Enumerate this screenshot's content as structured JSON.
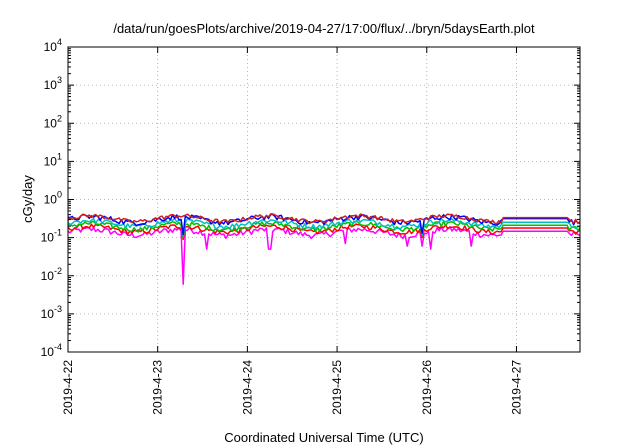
{
  "chart_data": {
    "type": "line",
    "title": "/data/run/goesPlots/archive/2019-04-27/17:00/flux/../bryn/5daysEarth.plot",
    "xlabel": "Coordinated Universal Time (UTC)",
    "ylabel": "cGy/day",
    "yscale": "log",
    "ylim": [
      0.0001,
      10000
    ],
    "y_ticks": [
      {
        "value": 0.0001,
        "base": "10",
        "exp": "-4"
      },
      {
        "value": 0.001,
        "base": "10",
        "exp": "-3"
      },
      {
        "value": 0.01,
        "base": "10",
        "exp": "-2"
      },
      {
        "value": 0.1,
        "base": "10",
        "exp": "-1"
      },
      {
        "value": 1,
        "base": "10",
        "exp": "0"
      },
      {
        "value": 10,
        "base": "10",
        "exp": "1"
      },
      {
        "value": 100,
        "base": "10",
        "exp": "2"
      },
      {
        "value": 1000,
        "base": "10",
        "exp": "3"
      },
      {
        "value": 10000,
        "base": "10",
        "exp": "4"
      }
    ],
    "x_ticks": [
      "2019-4-22",
      "2019-4-23",
      "2019-4-24",
      "2019-4-25",
      "2019-4-26",
      "2019-4-27"
    ],
    "xlim": [
      "2019-04-22T00:00",
      "2019-04-27T17:00"
    ],
    "grid": true,
    "legend": "none",
    "series": [
      {
        "color": "#ff00ff",
        "base": 0.14,
        "spread": 0.05,
        "dips": [
          [
            1.28,
            0.006
          ],
          [
            1.55,
            0.05
          ],
          [
            2.25,
            0.05
          ],
          [
            3.1,
            0.07
          ],
          [
            3.78,
            0.06
          ],
          [
            3.95,
            0.06
          ],
          [
            4.05,
            0.05
          ],
          [
            4.5,
            0.06
          ]
        ]
      },
      {
        "color": "#ff0000",
        "base": 0.17,
        "spread": 0.05,
        "dips": [
          [
            1.28,
            0.09
          ],
          [
            3.95,
            0.1
          ]
        ]
      },
      {
        "color": "#00c000",
        "base": 0.2,
        "spread": 0.06,
        "dips": [
          [
            1.28,
            0.1
          ],
          [
            3.95,
            0.11
          ]
        ]
      },
      {
        "color": "#00c0c0",
        "base": 0.24,
        "spread": 0.07,
        "dips": [
          [
            1.28,
            0.11
          ],
          [
            3.95,
            0.12
          ]
        ]
      },
      {
        "color": "#0000ff",
        "base": 0.3,
        "spread": 0.1,
        "dips": [
          [
            1.28,
            0.12
          ],
          [
            3.95,
            0.13
          ]
        ]
      },
      {
        "color": "#cc2020",
        "base": 0.32,
        "spread": 0.08,
        "dips": []
      }
    ]
  }
}
